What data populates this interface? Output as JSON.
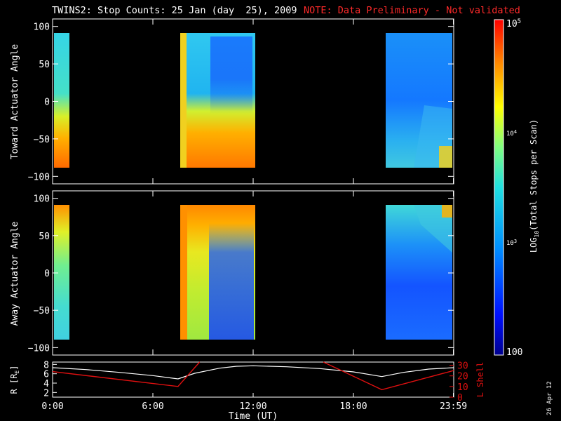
{
  "header": {
    "title": "TWINS2: Stop Counts: 25 Jan (day  25), 2009",
    "note": "NOTE: Data Preliminary - Not validated"
  },
  "side_date": "26 Apr 12",
  "colors": {
    "l_shell": "#e01010",
    "r_trace": "#ffffff",
    "note": "#ff2a2a"
  },
  "chart_data": [
    {
      "type": "heatmap",
      "ylabel": "Toward Actuator Angle",
      "ylim": [
        -110,
        110
      ],
      "yticks": [
        100,
        50,
        0,
        -50,
        -100
      ],
      "xlim": [
        0,
        24
      ],
      "xticks": [
        "0:00",
        "6:00",
        "12:00",
        "18:00",
        "23:59"
      ],
      "data_angle_range": [
        -90,
        90
      ],
      "data_segments_hours": [
        [
          0.0,
          0.4
        ],
        [
          7.5,
          12.0
        ],
        [
          19.7,
          24.0
        ]
      ],
      "colorscale": "log10",
      "clim": [
        100,
        100000
      ]
    },
    {
      "type": "heatmap",
      "ylabel": "Away Actuator Angle",
      "ylim": [
        -110,
        110
      ],
      "yticks": [
        100,
        50,
        0,
        -50,
        -100
      ],
      "xlim": [
        0,
        24
      ],
      "xticks": [
        "0:00",
        "6:00",
        "12:00",
        "18:00",
        "23:59"
      ],
      "xlabel": "Time (UT)",
      "data_angle_range": [
        -90,
        90
      ],
      "data_segments_hours": [
        [
          0.0,
          0.4
        ],
        [
          7.5,
          12.0
        ],
        [
          19.7,
          24.0
        ]
      ],
      "colorscale": "log10",
      "clim": [
        100,
        100000
      ]
    },
    {
      "type": "line",
      "ylabel_left": "R [R",
      "ylabel_left_sub": "E",
      "ylabel_left_end": "]",
      "ylabel_right": "L Shell",
      "left_ticks": [
        "8",
        "6",
        "4",
        "2"
      ],
      "right_ticks": [
        "30",
        "20",
        "10",
        "0"
      ],
      "left_ylim": [
        1,
        8.5
      ],
      "right_ylim": [
        0,
        33
      ],
      "xlim": [
        0,
        24
      ],
      "xticks": [
        "0:00",
        "6:00",
        "12:00",
        "18:00",
        "23:59"
      ],
      "xlabel": "Time (UT)",
      "series": [
        {
          "axis": "left",
          "x": [
            0,
            2,
            4,
            6,
            7.5,
            8.5,
            10,
            11,
            12,
            14,
            16,
            18,
            19.7,
            21,
            22.5,
            24
          ],
          "y": [
            7.3,
            6.9,
            6.3,
            5.6,
            4.9,
            6.1,
            7.2,
            7.6,
            7.7,
            7.5,
            7.1,
            6.4,
            5.4,
            6.3,
            7.0,
            7.3
          ]
        },
        {
          "axis": "right",
          "segments": [
            {
              "x": [
                0,
                7.5,
                8.8
              ],
              "y": [
                24,
                10,
                33
              ]
            },
            {
              "x": [
                16.2,
                19.7,
                24
              ],
              "y": [
                33,
                7,
                25
              ]
            }
          ]
        }
      ]
    },
    {
      "type": "colorbar",
      "label": "LOG10(Total Stops per Scan)",
      "ticks": [
        "10^5",
        "10^4",
        "10^3",
        "100"
      ],
      "range": [
        100,
        100000
      ]
    }
  ]
}
